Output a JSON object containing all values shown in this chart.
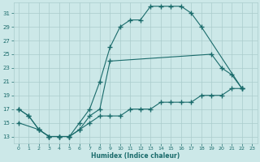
{
  "xlabel": "Humidex (Indice chaleur)",
  "bg_color": "#cce8e8",
  "grid_color": "#aacccc",
  "line_color": "#1a6b6b",
  "xlim": [
    -0.5,
    23.5
  ],
  "ylim": [
    12.0,
    32.5
  ],
  "xticks": [
    0,
    1,
    2,
    3,
    4,
    5,
    6,
    7,
    8,
    9,
    10,
    11,
    12,
    13,
    14,
    15,
    16,
    17,
    18,
    19,
    20,
    21,
    22,
    23
  ],
  "yticks": [
    13,
    15,
    17,
    19,
    21,
    23,
    25,
    27,
    29,
    31
  ],
  "line1_x": [
    0,
    1,
    2,
    3,
    4,
    5,
    6,
    7,
    8,
    9,
    10,
    11,
    12,
    13,
    14,
    15,
    16,
    17,
    18,
    22
  ],
  "line1_y": [
    17,
    16,
    14,
    13,
    13,
    13,
    15,
    17,
    21,
    26,
    29,
    30,
    30,
    32,
    32,
    32,
    32,
    31,
    29,
    20
  ],
  "line2_x": [
    0,
    1,
    2,
    3,
    4,
    5,
    6,
    7,
    8,
    9,
    19,
    20,
    21,
    22
  ],
  "line2_y": [
    17,
    16,
    14,
    13,
    13,
    13,
    14,
    16,
    17,
    24,
    25,
    23,
    22,
    20
  ],
  "line3_x": [
    0,
    2,
    3,
    4,
    5,
    6,
    7,
    8,
    9,
    10,
    11,
    12,
    13,
    14,
    15,
    16,
    17,
    18,
    19,
    20,
    21,
    22
  ],
  "line3_y": [
    15,
    14,
    13,
    13,
    13,
    14,
    15,
    16,
    16,
    16,
    17,
    17,
    17,
    18,
    18,
    18,
    18,
    19,
    19,
    19,
    20,
    20
  ]
}
